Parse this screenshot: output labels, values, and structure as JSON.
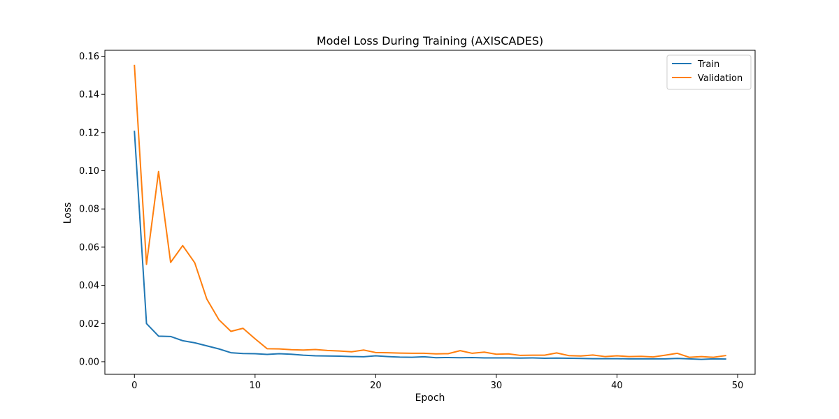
{
  "chart_data": {
    "type": "line",
    "title": "Model Loss During Training (AXISCADES)",
    "xlabel": "Epoch",
    "ylabel": "Loss",
    "xlim": [
      -2.45,
      51.45
    ],
    "ylim": [
      -0.0066,
      0.1631
    ],
    "xticks": [
      0,
      10,
      20,
      30,
      40,
      50
    ],
    "xtick_labels": [
      "0",
      "10",
      "20",
      "30",
      "40",
      "50"
    ],
    "yticks": [
      0.0,
      0.02,
      0.04,
      0.06,
      0.08,
      0.1,
      0.12,
      0.14,
      0.16
    ],
    "ytick_labels": [
      "0.00",
      "0.02",
      "0.04",
      "0.06",
      "0.08",
      "0.10",
      "0.12",
      "0.14",
      "0.16"
    ],
    "grid": false,
    "legend_position": "top-right",
    "x": [
      0,
      1,
      2,
      3,
      4,
      5,
      6,
      7,
      8,
      9,
      10,
      11,
      12,
      13,
      14,
      15,
      16,
      17,
      18,
      19,
      20,
      21,
      22,
      23,
      24,
      25,
      26,
      27,
      28,
      29,
      30,
      31,
      32,
      33,
      34,
      35,
      36,
      37,
      38,
      39,
      40,
      41,
      42,
      43,
      44,
      45,
      46,
      47,
      48,
      49
    ],
    "series": [
      {
        "name": "Train",
        "color": "#1f77b4",
        "values": [
          0.1206,
          0.02,
          0.0134,
          0.0132,
          0.011,
          0.0099,
          0.0083,
          0.0067,
          0.0047,
          0.0043,
          0.0042,
          0.0038,
          0.0042,
          0.0039,
          0.0034,
          0.0031,
          0.003,
          0.0029,
          0.0027,
          0.0026,
          0.0031,
          0.0027,
          0.0024,
          0.0023,
          0.0026,
          0.0021,
          0.0022,
          0.0021,
          0.0022,
          0.002,
          0.002,
          0.002,
          0.0019,
          0.002,
          0.0018,
          0.0019,
          0.0018,
          0.0017,
          0.0016,
          0.0016,
          0.0016,
          0.0015,
          0.0015,
          0.0015,
          0.0015,
          0.0017,
          0.0015,
          0.0012,
          0.0015,
          0.0014
        ]
      },
      {
        "name": "Validation",
        "color": "#ff7f0e",
        "values": [
          0.1551,
          0.051,
          0.0996,
          0.052,
          0.0608,
          0.0518,
          0.0328,
          0.022,
          0.0159,
          0.0175,
          0.012,
          0.0068,
          0.0067,
          0.0063,
          0.0061,
          0.0064,
          0.0059,
          0.0056,
          0.0052,
          0.0061,
          0.0048,
          0.0047,
          0.0045,
          0.0044,
          0.0044,
          0.0041,
          0.0042,
          0.0058,
          0.0044,
          0.005,
          0.0039,
          0.0041,
          0.0033,
          0.0034,
          0.0034,
          0.0046,
          0.0032,
          0.003,
          0.0035,
          0.0027,
          0.0031,
          0.0027,
          0.0028,
          0.0025,
          0.0034,
          0.0044,
          0.0023,
          0.0027,
          0.0023,
          0.0032
        ]
      }
    ]
  }
}
